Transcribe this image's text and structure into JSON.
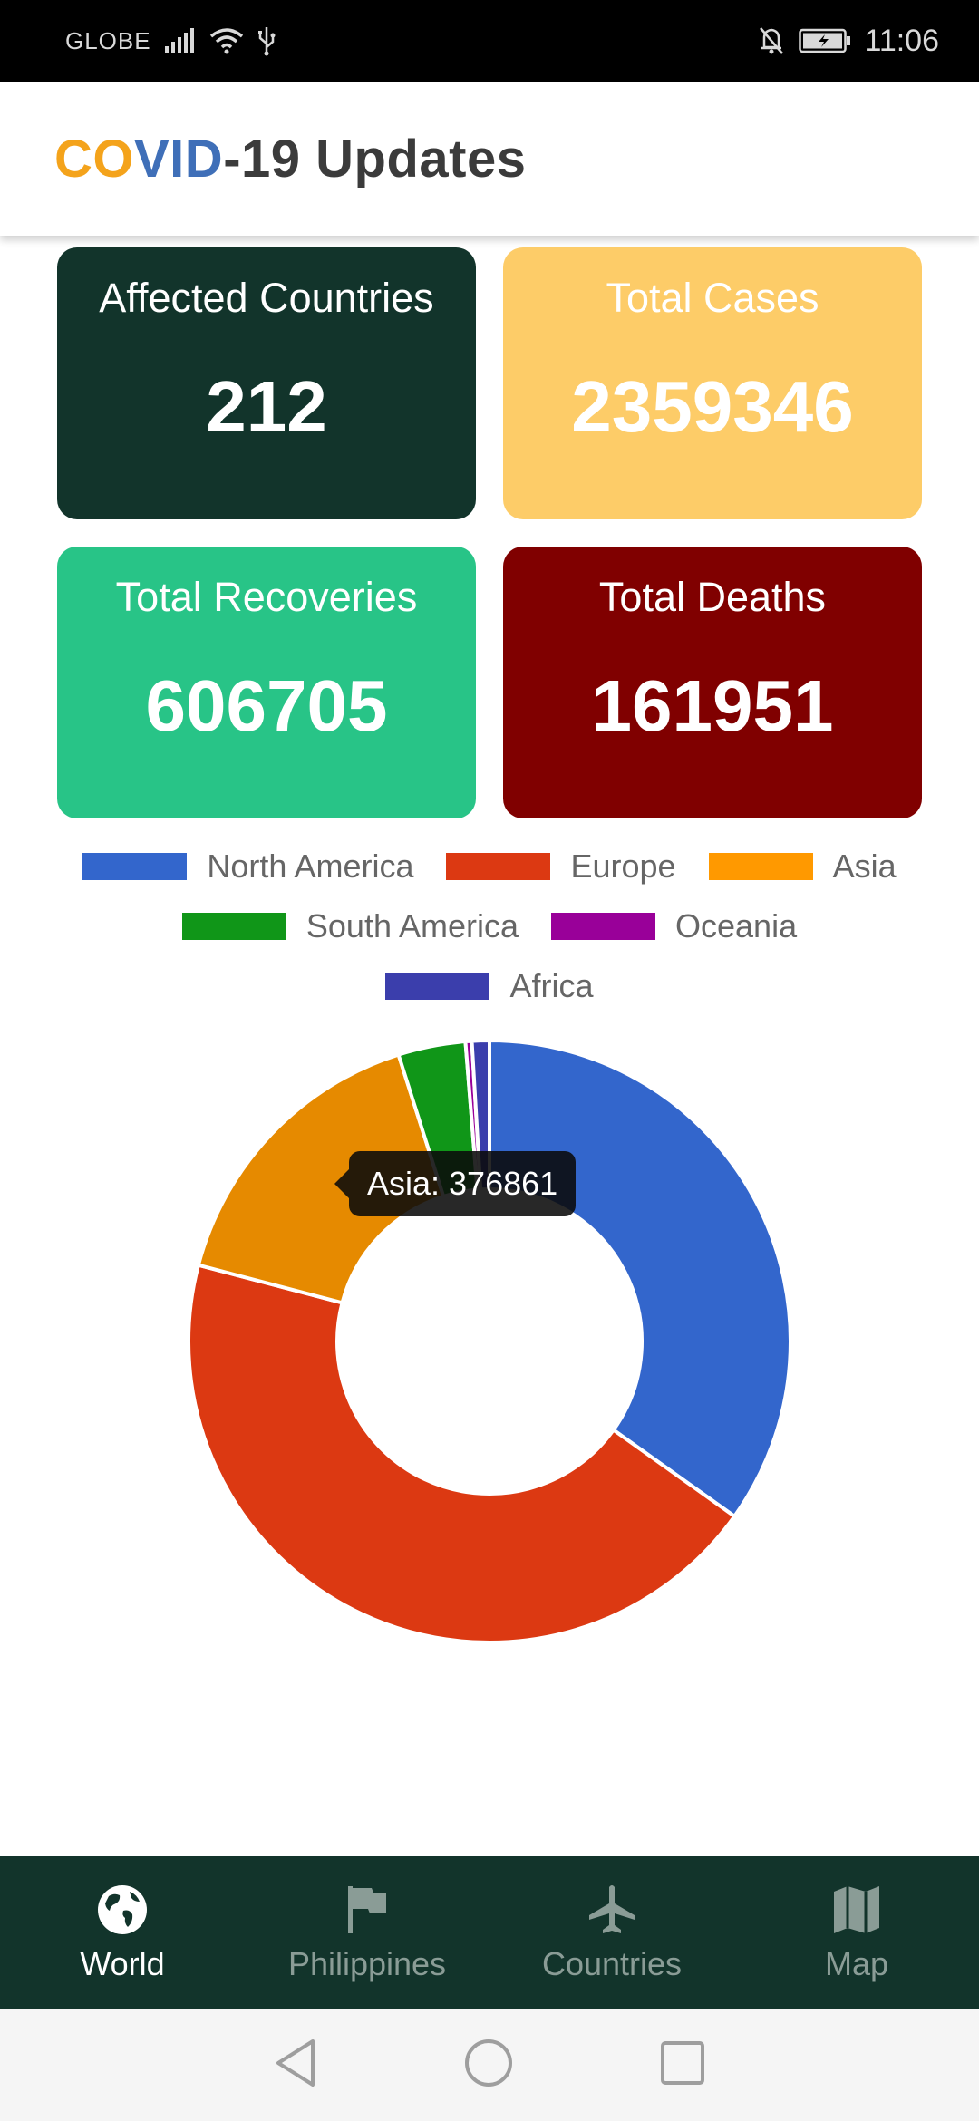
{
  "status_bar": {
    "carrier": "GLOBE",
    "time": "11:06"
  },
  "header": {
    "title_part1": "CO",
    "title_part2": "VID",
    "title_part3": "-19 Updates",
    "colors": {
      "part1": "#f4a31b",
      "part2": "#3f6fb8",
      "part3": "#3b3b3b"
    }
  },
  "cards": [
    {
      "label": "Affected Countries",
      "value": "212",
      "color": "#12342b"
    },
    {
      "label": "Total Cases",
      "value": "2359346",
      "color": "#fdcc68"
    },
    {
      "label": "Total Recoveries",
      "value": "606705",
      "color": "#28c487"
    },
    {
      "label": "Total Deaths",
      "value": "161951",
      "color": "#800000"
    }
  ],
  "chart_data": {
    "type": "pie",
    "categories": [
      "North America",
      "Europe",
      "Asia",
      "South America",
      "Oceania",
      "Africa"
    ],
    "values": [
      820000,
      1040000,
      376861,
      85000,
      8000,
      22000
    ],
    "colors": [
      "#3366cc",
      "#dc3912",
      "#e68a00",
      "#109618",
      "#990099",
      "#3b3eac"
    ],
    "legend": "top",
    "tooltip": "Asia: 376861"
  },
  "bottom_nav": {
    "items": [
      {
        "label": "World",
        "icon": "globe-icon",
        "active": true
      },
      {
        "label": "Philippines",
        "icon": "flag-icon",
        "active": false
      },
      {
        "label": "Countries",
        "icon": "airplane-icon",
        "active": false
      },
      {
        "label": "Map",
        "icon": "map-icon",
        "active": false
      }
    ]
  }
}
